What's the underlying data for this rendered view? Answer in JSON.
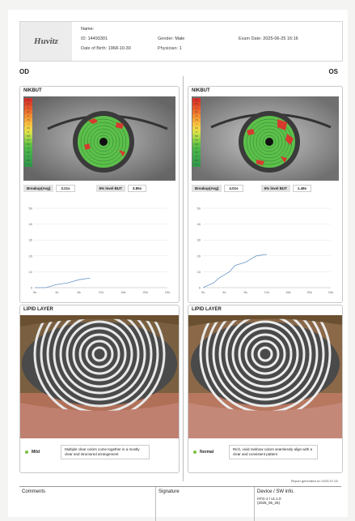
{
  "header": {
    "logo": "Huvitz",
    "name_label": "Name:",
    "id_label": "ID:",
    "id_value": "14493301",
    "dob_label": "Date of Birth:",
    "dob_value": "1968-10-30",
    "gender_label": "Gender:",
    "gender_value": "Male",
    "physician_label": "Physician:",
    "physician_value": "1",
    "exam_label": "Exam Date:",
    "exam_value": "2025-06-25 16:16"
  },
  "od": {
    "eye_label": "OD",
    "nikbut_title": "NIKBUT",
    "breakup_label": "Breakup(Avg)",
    "breakup_value": "3.21s",
    "level_label": "5% level BUT",
    "level_value": "3.85s",
    "lipid_title": "LIPID LAYER",
    "grade": "Mild",
    "grade_desc": "Multiple clear colors come together in a mostly clear and structured arrangement"
  },
  "os": {
    "eye_label": "OS",
    "nikbut_title": "NIKBUT",
    "breakup_label": "Breakup(Avg)",
    "breakup_value": "4.01s",
    "level_label": "5% level BUT",
    "level_value": "1.48s",
    "lipid_title": "LIPID LAYER",
    "grade": "Normal",
    "grade_desc": "Rich, vivid rainbow colors seamlessly align with a clear and consistent pattern"
  },
  "chart_data": [
    {
      "type": "line",
      "x": [
        0,
        2,
        4,
        6,
        8,
        10
      ],
      "y": [
        0,
        0,
        2,
        3,
        5,
        6
      ],
      "xticks": [
        "0s",
        "4s",
        "8s",
        "12s",
        "16s",
        "20s",
        "24s"
      ],
      "yticks": [
        "0",
        "10",
        "20",
        "30",
        "40",
        "50"
      ],
      "ylim": [
        0,
        50
      ]
    },
    {
      "type": "line",
      "x": [
        0,
        2,
        3,
        4,
        5,
        6,
        8,
        10,
        12
      ],
      "y": [
        0,
        3,
        6,
        8,
        10,
        14,
        16,
        20,
        21
      ],
      "xticks": [
        "0s",
        "4s",
        "8s",
        "12s",
        "16s",
        "20s",
        "24s"
      ],
      "yticks": [
        "0",
        "10",
        "20",
        "30",
        "40",
        "50"
      ],
      "ylim": [
        0,
        50
      ]
    }
  ],
  "scale_labels": [
    "10",
    "9.5",
    "9",
    "8.5",
    "8",
    "7.5",
    "7",
    "6.5",
    "6",
    "5.5",
    "5",
    "4.5",
    "4",
    "3.5",
    "3",
    "2.5",
    "2"
  ],
  "report_generated": "Report generated on 2025-07-02",
  "footer": {
    "comments": "Comments",
    "signature": "Signature",
    "device_title": "Device / SW info.",
    "device_line1": "HTG-1 / v1.1.0",
    "device_line2": "(2025_06_25)"
  }
}
